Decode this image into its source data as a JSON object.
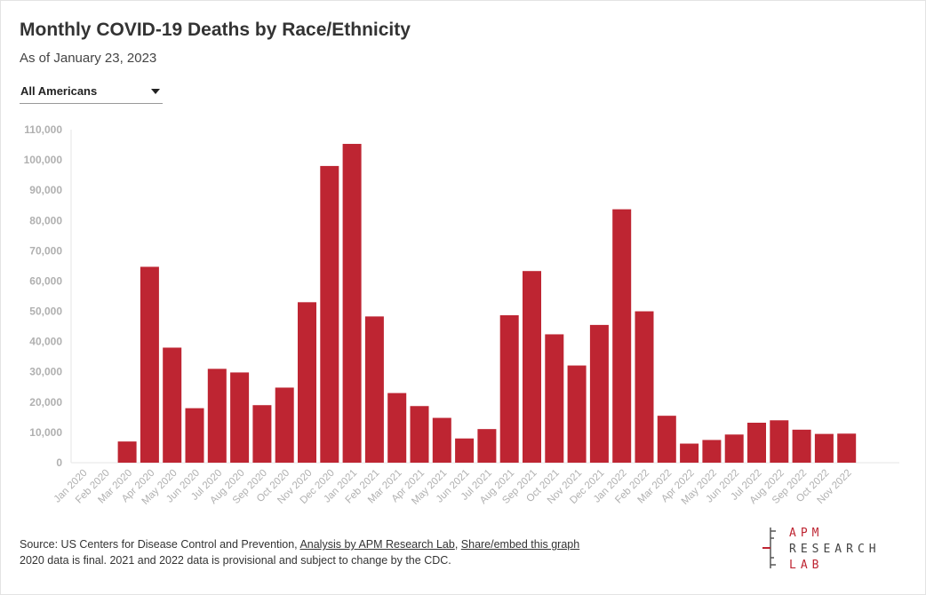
{
  "header": {
    "title": "Monthly COVID-19 Deaths by Race/Ethnicity",
    "subtitle": "As of January 23, 2023"
  },
  "filter": {
    "selected": "All Americans"
  },
  "chart_data": {
    "type": "bar",
    "categories": [
      "Jan 2020",
      "Feb 2020",
      "Mar 2020",
      "Apr 2020",
      "May 2020",
      "Jun 2020",
      "Jul 2020",
      "Aug 2020",
      "Sep 2020",
      "Oct 2020",
      "Nov 2020",
      "Dec 2020",
      "Jan 2021",
      "Feb 2021",
      "Mar 2021",
      "Apr 2021",
      "May 2021",
      "Jun 2021",
      "Jul 2021",
      "Aug 2021",
      "Sep 2021",
      "Oct 2021",
      "Nov 2021",
      "Dec 2021",
      "Jan 2022",
      "Feb 2022",
      "Mar 2022",
      "Apr 2022",
      "May 2022",
      "Jun 2022",
      "Jul 2022",
      "Aug 2022",
      "Sep 2022",
      "Oct 2022",
      "Nov 2022"
    ],
    "values": [
      0,
      0,
      7000,
      64700,
      38000,
      18000,
      31000,
      29800,
      19000,
      24800,
      53000,
      98000,
      105300,
      48300,
      23000,
      18700,
      14800,
      8000,
      11100,
      48700,
      63300,
      42400,
      32100,
      45500,
      83700,
      50000,
      15500,
      6300,
      7500,
      9300,
      13200,
      14000,
      10900,
      9500,
      9600
    ],
    "yticks": [
      "110,000",
      "100,000",
      "90,000",
      "80,000",
      "70,000",
      "60,000",
      "50,000",
      "40,000",
      "30,000",
      "20,000",
      "10,000",
      "0"
    ],
    "ylim": [
      0,
      110000
    ],
    "color": "#be2532",
    "grid": false
  },
  "footer": {
    "source_prefix": "Source: US Centers for Disease Control and Prevention, ",
    "analysis_link": "Analysis by APM Research Lab",
    "separator": ", ",
    "share_link": "Share/embed this graph",
    "note": "2020 data is final. 2021 and 2022 data is provisional and subject to change by the CDC."
  },
  "logo": {
    "line1": "APM",
    "line2": "RESEARCH",
    "line3": "LAB",
    "red": "#be2532",
    "gray": "#555555"
  }
}
